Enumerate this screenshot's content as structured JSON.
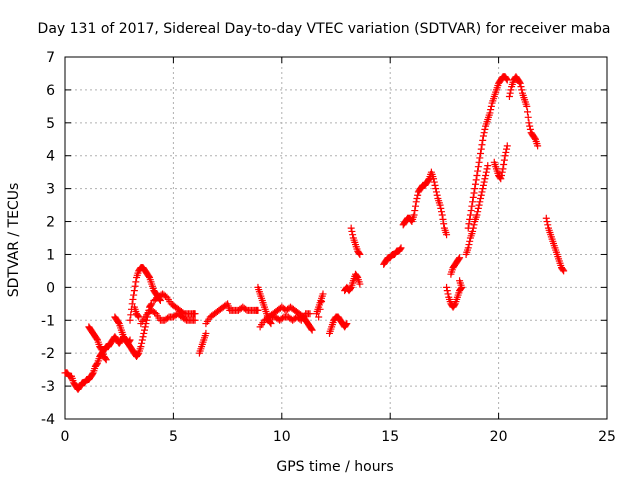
{
  "chart_data": {
    "type": "scatter",
    "title": "Day 131 of 2017, Sidereal Day-to-day VTEC variation (SDTVAR) for receiver maba",
    "xlabel": "GPS time / hours",
    "ylabel": "SDTVAR / TECUs",
    "xlim": [
      0,
      25
    ],
    "ylim": [
      -4,
      7
    ],
    "xticks": [
      0,
      5,
      10,
      15,
      20,
      25
    ],
    "yticks": [
      -4,
      -3,
      -2,
      -1,
      0,
      1,
      2,
      3,
      4,
      5,
      6,
      7
    ],
    "grid": true,
    "marker": "+",
    "color": "#ff0000",
    "segments": [
      [
        [
          0.0,
          -2.6
        ],
        [
          0.1,
          -2.6
        ],
        [
          0.2,
          -2.7
        ],
        [
          0.3,
          -2.7
        ],
        [
          0.4,
          -2.9
        ],
        [
          0.5,
          -3.0
        ],
        [
          0.6,
          -3.1
        ],
        [
          0.7,
          -3.0
        ],
        [
          0.8,
          -2.9
        ],
        [
          0.9,
          -2.9
        ],
        [
          1.0,
          -2.8
        ],
        [
          1.1,
          -2.8
        ],
        [
          1.2,
          -2.7
        ],
        [
          1.3,
          -2.6
        ],
        [
          1.4,
          -2.4
        ],
        [
          1.5,
          -2.3
        ],
        [
          1.6,
          -2.1
        ],
        [
          1.7,
          -2.0
        ],
        [
          1.8,
          -1.9
        ],
        [
          1.9,
          -1.8
        ],
        [
          2.0,
          -1.8
        ],
        [
          2.1,
          -1.7
        ],
        [
          2.2,
          -1.6
        ],
        [
          2.3,
          -1.5
        ],
        [
          2.4,
          -1.6
        ],
        [
          2.5,
          -1.7
        ],
        [
          2.6,
          -1.6
        ],
        [
          2.7,
          -1.5
        ],
        [
          2.8,
          -1.6
        ],
        [
          2.9,
          -1.7
        ],
        [
          3.0,
          -1.8
        ],
        [
          3.1,
          -1.9
        ],
        [
          3.2,
          -2.0
        ],
        [
          3.3,
          -2.1
        ],
        [
          3.4,
          -2.0
        ],
        [
          3.5,
          -1.8
        ],
        [
          3.6,
          -1.5
        ],
        [
          3.7,
          -1.2
        ],
        [
          3.8,
          -0.9
        ],
        [
          3.9,
          -0.6
        ],
        [
          4.0,
          -0.5
        ]
      ],
      [
        [
          1.1,
          -1.2
        ],
        [
          1.2,
          -1.3
        ],
        [
          1.3,
          -1.4
        ],
        [
          1.4,
          -1.5
        ],
        [
          1.5,
          -1.6
        ],
        [
          1.6,
          -1.8
        ],
        [
          1.7,
          -1.9
        ],
        [
          1.8,
          -2.1
        ],
        [
          1.9,
          -2.2
        ]
      ],
      [
        [
          2.3,
          -0.9
        ],
        [
          2.4,
          -1.0
        ],
        [
          2.5,
          -1.1
        ],
        [
          2.6,
          -1.3
        ],
        [
          2.7,
          -1.5
        ],
        [
          2.8,
          -1.6
        ],
        [
          2.9,
          -1.7
        ],
        [
          3.0,
          -1.6
        ]
      ],
      [
        [
          3.0,
          -1.0
        ],
        [
          3.1,
          -0.5
        ],
        [
          3.2,
          -0.1
        ],
        [
          3.3,
          0.3
        ],
        [
          3.4,
          0.5
        ],
        [
          3.5,
          0.6
        ],
        [
          3.6,
          0.6
        ],
        [
          3.7,
          0.5
        ],
        [
          3.8,
          0.4
        ],
        [
          3.9,
          0.3
        ],
        [
          4.0,
          0.1
        ],
        [
          4.1,
          -0.1
        ],
        [
          4.2,
          -0.2
        ],
        [
          4.3,
          -0.3
        ],
        [
          4.4,
          -0.4
        ]
      ],
      [
        [
          3.5,
          -1.1
        ],
        [
          3.7,
          -0.9
        ],
        [
          3.9,
          -0.7
        ],
        [
          4.0,
          -0.7
        ],
        [
          4.2,
          -0.8
        ],
        [
          4.4,
          -1.0
        ],
        [
          4.6,
          -1.0
        ],
        [
          4.8,
          -0.9
        ],
        [
          5.0,
          -0.9
        ],
        [
          5.2,
          -0.8
        ],
        [
          5.4,
          -0.9
        ],
        [
          5.6,
          -1.0
        ],
        [
          5.8,
          -1.0
        ],
        [
          6.0,
          -1.0
        ]
      ],
      [
        [
          4.1,
          -0.4
        ],
        [
          4.3,
          -0.3
        ],
        [
          4.5,
          -0.2
        ],
        [
          4.7,
          -0.3
        ],
        [
          4.9,
          -0.5
        ],
        [
          5.1,
          -0.6
        ],
        [
          5.3,
          -0.7
        ],
        [
          5.5,
          -0.8
        ],
        [
          5.7,
          -0.8
        ],
        [
          5.9,
          -0.8
        ],
        [
          6.0,
          -0.8
        ]
      ],
      [
        [
          3.2,
          -0.6
        ],
        [
          3.3,
          -0.8
        ],
        [
          3.4,
          -0.9
        ]
      ],
      [
        [
          6.2,
          -2.0
        ],
        [
          6.3,
          -1.8
        ],
        [
          6.4,
          -1.6
        ],
        [
          6.5,
          -1.4
        ]
      ],
      [
        [
          6.5,
          -1.1
        ],
        [
          6.7,
          -0.9
        ],
        [
          6.9,
          -0.8
        ],
        [
          7.1,
          -0.7
        ],
        [
          7.3,
          -0.6
        ],
        [
          7.5,
          -0.5
        ],
        [
          7.6,
          -0.7
        ],
        [
          7.8,
          -0.7
        ],
        [
          8.0,
          -0.7
        ],
        [
          8.2,
          -0.6
        ],
        [
          8.4,
          -0.7
        ],
        [
          8.6,
          -0.7
        ],
        [
          8.8,
          -0.7
        ],
        [
          8.9,
          -0.7
        ]
      ],
      [
        [
          8.9,
          0.0
        ],
        [
          9.0,
          -0.2
        ],
        [
          9.1,
          -0.4
        ],
        [
          9.2,
          -0.6
        ],
        [
          9.3,
          -0.8
        ],
        [
          9.4,
          -1.0
        ],
        [
          9.5,
          -1.1
        ]
      ],
      [
        [
          9.0,
          -1.2
        ],
        [
          9.2,
          -1.0
        ],
        [
          9.4,
          -0.9
        ],
        [
          9.6,
          -0.8
        ],
        [
          9.8,
          -0.7
        ],
        [
          10.0,
          -0.6
        ],
        [
          10.2,
          -0.7
        ],
        [
          10.4,
          -0.6
        ],
        [
          10.6,
          -0.7
        ],
        [
          10.8,
          -0.8
        ],
        [
          11.0,
          -0.9
        ],
        [
          11.1,
          -1.0
        ],
        [
          11.2,
          -1.1
        ],
        [
          11.3,
          -1.2
        ],
        [
          11.4,
          -1.3
        ]
      ],
      [
        [
          9.5,
          -0.9
        ],
        [
          9.7,
          -0.9
        ],
        [
          9.9,
          -1.0
        ],
        [
          10.1,
          -0.9
        ],
        [
          10.3,
          -0.9
        ],
        [
          10.5,
          -1.0
        ],
        [
          10.7,
          -0.9
        ],
        [
          10.9,
          -1.0
        ],
        [
          11.1,
          -0.8
        ],
        [
          11.3,
          -0.8
        ]
      ],
      [
        [
          11.6,
          -0.8
        ],
        [
          11.7,
          -0.6
        ],
        [
          11.8,
          -0.4
        ],
        [
          11.9,
          -0.2
        ],
        [
          11.7,
          -0.9
        ]
      ],
      [
        [
          12.2,
          -1.4
        ],
        [
          12.3,
          -1.2
        ],
        [
          12.4,
          -1.0
        ],
        [
          12.5,
          -0.9
        ],
        [
          12.6,
          -0.9
        ],
        [
          12.7,
          -1.0
        ],
        [
          12.8,
          -1.1
        ],
        [
          12.9,
          -1.2
        ],
        [
          13.0,
          -1.1
        ]
      ],
      [
        [
          12.9,
          -0.1
        ],
        [
          13.0,
          0.0
        ],
        [
          13.1,
          -0.1
        ],
        [
          13.2,
          0.0
        ],
        [
          13.3,
          0.2
        ],
        [
          13.4,
          0.4
        ],
        [
          13.5,
          0.3
        ],
        [
          13.6,
          0.1
        ]
      ],
      [
        [
          13.2,
          1.8
        ],
        [
          13.3,
          1.5
        ],
        [
          13.4,
          1.3
        ],
        [
          13.5,
          1.1
        ],
        [
          13.6,
          1.0
        ]
      ],
      [
        [
          14.7,
          0.7
        ],
        [
          14.8,
          0.8
        ],
        [
          14.9,
          0.9
        ],
        [
          15.0,
          0.9
        ],
        [
          15.1,
          1.0
        ],
        [
          15.2,
          1.0
        ],
        [
          15.3,
          1.1
        ],
        [
          15.4,
          1.1
        ],
        [
          15.5,
          1.2
        ]
      ],
      [
        [
          15.6,
          1.9
        ],
        [
          15.7,
          2.0
        ],
        [
          15.8,
          2.1
        ],
        [
          15.9,
          2.1
        ],
        [
          16.0,
          2.0
        ],
        [
          16.1,
          2.2
        ],
        [
          16.2,
          2.6
        ],
        [
          16.3,
          2.9
        ],
        [
          16.4,
          3.0
        ],
        [
          16.5,
          3.1
        ],
        [
          16.6,
          3.1
        ],
        [
          16.7,
          3.2
        ],
        [
          16.8,
          3.3
        ],
        [
          16.9,
          3.5
        ],
        [
          17.0,
          3.3
        ],
        [
          17.1,
          3.0
        ],
        [
          17.2,
          2.7
        ],
        [
          17.3,
          2.5
        ],
        [
          17.4,
          2.2
        ],
        [
          17.5,
          1.8
        ],
        [
          17.6,
          1.6
        ]
      ],
      [
        [
          17.6,
          0.0
        ],
        [
          17.7,
          -0.3
        ],
        [
          17.8,
          -0.5
        ],
        [
          17.9,
          -0.6
        ],
        [
          18.0,
          -0.5
        ],
        [
          18.1,
          -0.3
        ],
        [
          18.2,
          -0.1
        ],
        [
          18.3,
          0.0
        ],
        [
          18.2,
          0.2
        ]
      ],
      [
        [
          17.8,
          0.4
        ],
        [
          17.9,
          0.6
        ],
        [
          18.0,
          0.7
        ],
        [
          18.1,
          0.8
        ],
        [
          18.2,
          0.9
        ]
      ],
      [
        [
          18.5,
          1.0
        ],
        [
          18.6,
          1.2
        ],
        [
          18.7,
          1.5
        ],
        [
          18.8,
          1.7
        ],
        [
          18.9,
          2.0
        ],
        [
          19.0,
          2.2
        ],
        [
          19.1,
          2.5
        ],
        [
          19.2,
          2.8
        ],
        [
          19.3,
          3.1
        ],
        [
          19.4,
          3.4
        ],
        [
          19.5,
          3.7
        ]
      ],
      [
        [
          18.6,
          1.8
        ],
        [
          18.7,
          2.2
        ],
        [
          18.8,
          2.6
        ],
        [
          18.9,
          3.0
        ],
        [
          19.0,
          3.4
        ],
        [
          19.1,
          3.8
        ],
        [
          19.2,
          4.2
        ],
        [
          19.3,
          4.6
        ],
        [
          19.4,
          4.9
        ],
        [
          19.5,
          5.1
        ],
        [
          19.6,
          5.3
        ],
        [
          19.7,
          5.6
        ],
        [
          19.8,
          5.8
        ],
        [
          19.9,
          6.0
        ],
        [
          20.0,
          6.2
        ],
        [
          20.1,
          6.3
        ],
        [
          20.2,
          6.4
        ],
        [
          20.3,
          6.4
        ],
        [
          20.4,
          6.3
        ]
      ],
      [
        [
          19.8,
          3.8
        ],
        [
          19.9,
          3.6
        ],
        [
          20.0,
          3.4
        ],
        [
          20.1,
          3.3
        ],
        [
          20.2,
          3.6
        ],
        [
          20.3,
          4.0
        ],
        [
          20.4,
          4.3
        ]
      ],
      [
        [
          20.5,
          5.8
        ],
        [
          20.6,
          6.1
        ],
        [
          20.7,
          6.3
        ],
        [
          20.8,
          6.4
        ],
        [
          20.9,
          6.3
        ],
        [
          21.0,
          6.2
        ],
        [
          21.1,
          5.9
        ],
        [
          21.2,
          5.7
        ],
        [
          21.3,
          5.5
        ],
        [
          21.4,
          5.0
        ],
        [
          21.5,
          4.7
        ],
        [
          21.6,
          4.6
        ],
        [
          21.7,
          4.5
        ],
        [
          21.8,
          4.3
        ]
      ],
      [
        [
          22.2,
          2.1
        ],
        [
          22.3,
          1.8
        ],
        [
          22.4,
          1.6
        ],
        [
          22.5,
          1.4
        ],
        [
          22.6,
          1.2
        ],
        [
          22.7,
          1.0
        ],
        [
          22.8,
          0.8
        ],
        [
          22.9,
          0.6
        ],
        [
          23.0,
          0.5
        ]
      ]
    ]
  }
}
